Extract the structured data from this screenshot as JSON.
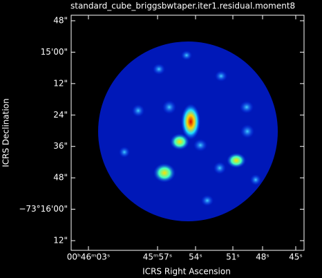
{
  "chart_data": {
    "type": "image",
    "title": "standard_cube_briggsbwtaper.iter1.residual.moment8",
    "xlabel": "ICRS Right Ascension",
    "ylabel": "ICRS Declination",
    "xticks": [
      "00ʰ46ᵐ03ˢ",
      "45ᵐ57ˢ",
      "54ˢ",
      "51ˢ",
      "48ˢ",
      "45ˢ"
    ],
    "yticks": [
      "48\"",
      "15'00\"",
      "12\"",
      "24\"",
      "36\"",
      "48\"",
      "−73°16'00\"",
      "12\""
    ]
  }
}
